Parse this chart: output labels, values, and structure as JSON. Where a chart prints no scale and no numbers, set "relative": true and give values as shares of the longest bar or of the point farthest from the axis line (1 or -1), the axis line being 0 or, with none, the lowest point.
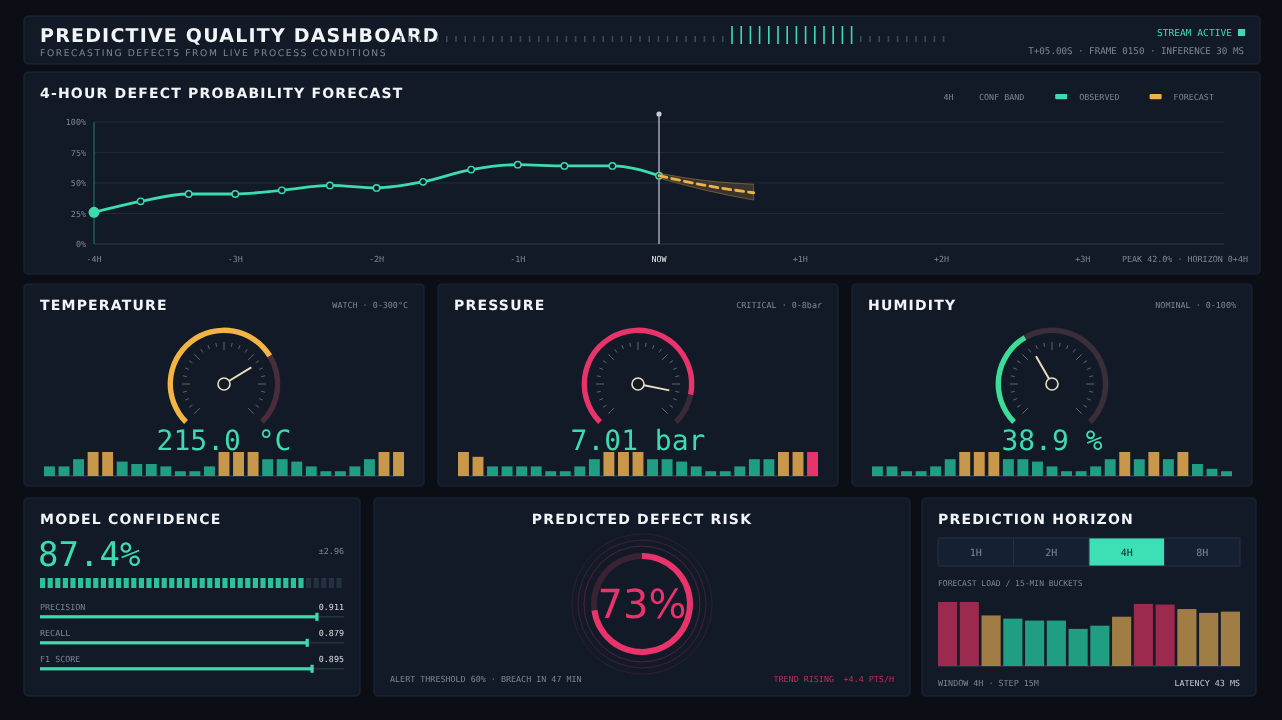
{
  "chart_data": [
    {
      "type": "other",
      "title": "PREDICTIVE QUALITY DASHBOARD",
      "subtitle": "FORECASTING DEFECTS FROM LIVE PROCESS CONDITIONS",
      "annotations": [
        "STREAM ACTIVE",
        "T+05.00S · FRAME 0150 · INFERENCE 30 MS"
      ]
    },
    {
      "type": "line",
      "title": "4-HOUR DEFECT PROBABILITY FORECAST",
      "xlim": [
        -4,
        4
      ],
      "ylim": [
        0,
        100
      ],
      "xticks": [
        {
          "value": -4,
          "label": "-4H"
        },
        {
          "value": -3,
          "label": "-3H"
        },
        {
          "value": -2,
          "label": "-2H"
        },
        {
          "value": -1,
          "label": "-1H"
        },
        {
          "value": 0,
          "label": "NOW"
        },
        {
          "value": 1,
          "label": "+1H"
        },
        {
          "value": 2,
          "label": "+2H"
        },
        {
          "value": 3,
          "label": "+3H"
        }
      ],
      "yticks": [
        {
          "value": 0,
          "label": "0%"
        },
        {
          "value": 25,
          "label": "25%"
        },
        {
          "value": 50,
          "label": "50%"
        },
        {
          "value": 75,
          "label": "75%"
        },
        {
          "value": 100,
          "label": "100%"
        }
      ],
      "series": [
        {
          "name": "OBSERVED",
          "color": "#3ddcb0",
          "marker": "circle",
          "line_style": "solid",
          "x": [
            -4,
            -3.67,
            -3.33,
            -3,
            -2.67,
            -2.33,
            -2,
            -1.67,
            -1.33,
            -1,
            -0.67,
            -0.33,
            0
          ],
          "values": [
            26,
            35,
            41,
            41,
            44,
            48,
            46,
            51,
            61,
            65,
            64,
            64,
            56
          ]
        },
        {
          "name": "FORECAST",
          "color": "#f0b04a",
          "marker": "none",
          "line_style": "dashed",
          "x": [
            0,
            0.33,
            0.67
          ],
          "values": [
            56,
            48,
            42
          ],
          "lower": [
            54,
            44,
            36
          ],
          "upper": [
            58,
            52,
            49
          ]
        }
      ],
      "ref_lines": [
        {
          "axis": "x",
          "value": 0,
          "color": "#c8ccd4"
        }
      ],
      "grid": "y",
      "legend": "top right",
      "annotations": [
        "4H",
        "CONF BAND",
        "PEAK 42.0% · HORIZON 0+4H"
      ]
    },
    {
      "type": "donut",
      "categories": [
        null,
        null
      ],
      "values": [
        71.7,
        28.3
      ],
      "colors": [
        "#f2b544",
        "#4a2c3a"
      ],
      "annotations": [
        "215.0 °C"
      ]
    },
    {
      "type": "bar",
      "title": "TEMPERATURE",
      "subtitle": "WATCH · 0-300°C",
      "relative": true,
      "categories": [
        null,
        null,
        null,
        null,
        null,
        null,
        null,
        null,
        null,
        null,
        null,
        null,
        null,
        null,
        null,
        null,
        null,
        null,
        null,
        null,
        null,
        null,
        null,
        null,
        null
      ],
      "values": [
        0.4,
        0.4,
        0.7,
        1,
        1,
        0.6,
        0.5,
        0.5,
        0.4,
        0.2,
        0.2,
        0.4,
        1,
        1,
        1,
        0.7,
        0.7,
        0.6,
        0.4,
        0.2,
        0.2,
        0.4,
        0.7,
        1,
        1
      ],
      "colors": [
        "#1f9e82",
        "#1f9e82",
        "#1f9e82",
        "#c9974a",
        "#c9974a",
        "#1f9e82",
        "#1f9e82",
        "#1f9e82",
        "#1f9e82",
        "#1f9e82",
        "#1f9e82",
        "#1f9e82",
        "#c9974a",
        "#c9974a",
        "#c9974a",
        "#1f9e82",
        "#1f9e82",
        "#1f9e82",
        "#1f9e82",
        "#1f9e82",
        "#1f9e82",
        "#1f9e82",
        "#1f9e82",
        "#c9974a",
        "#c9974a"
      ]
    },
    {
      "type": "donut",
      "categories": [
        null,
        null
      ],
      "values": [
        87.6,
        12.4
      ],
      "colors": [
        "#e8336b",
        "#3a2a35"
      ],
      "annotations": [
        "7.01 bar"
      ]
    },
    {
      "type": "bar",
      "title": "PRESSURE",
      "subtitle": "CRITICAL · 0-8bar",
      "relative": true,
      "categories": [
        null,
        null,
        null,
        null,
        null,
        null,
        null,
        null,
        null,
        null,
        null,
        null,
        null,
        null,
        null,
        null,
        null,
        null,
        null,
        null,
        null,
        null,
        null,
        null,
        null
      ],
      "values": [
        1,
        0.8,
        0.4,
        0.4,
        0.4,
        0.4,
        0.2,
        0.2,
        0.4,
        0.7,
        1,
        1,
        1,
        0.7,
        0.7,
        0.6,
        0.4,
        0.2,
        0.2,
        0.4,
        0.7,
        0.7,
        1,
        1,
        1
      ],
      "colors": [
        "#c9974a",
        "#c9974a",
        "#1f9e82",
        "#1f9e82",
        "#1f9e82",
        "#1f9e82",
        "#1f9e82",
        "#1f9e82",
        "#1f9e82",
        "#1f9e82",
        "#c9974a",
        "#c9974a",
        "#c9974a",
        "#1f9e82",
        "#1f9e82",
        "#1f9e82",
        "#1f9e82",
        "#1f9e82",
        "#1f9e82",
        "#1f9e82",
        "#1f9e82",
        "#1f9e82",
        "#c9974a",
        "#c9974a",
        "#e8336b"
      ]
    },
    {
      "type": "donut",
      "categories": [
        null,
        null
      ],
      "values": [
        38.9,
        61.1
      ],
      "colors": [
        "#3ddc97",
        "#3a2f38"
      ],
      "annotations": [
        "38.9 %"
      ]
    },
    {
      "type": "bar",
      "title": "HUMIDITY",
      "subtitle": "NOMINAL · 0-100%",
      "relative": true,
      "categories": [
        null,
        null,
        null,
        null,
        null,
        null,
        null,
        null,
        null,
        null,
        null,
        null,
        null,
        null,
        null,
        null,
        null,
        null,
        null,
        null,
        null,
        null,
        null,
        null,
        null
      ],
      "values": [
        0.4,
        0.4,
        0.2,
        0.2,
        0.4,
        0.7,
        1,
        1,
        1,
        0.7,
        0.7,
        0.6,
        0.4,
        0.2,
        0.2,
        0.4,
        0.7,
        1,
        0.7,
        1,
        0.7,
        1,
        0.5,
        0.3,
        0.2
      ],
      "colors": [
        "#1f9e82",
        "#1f9e82",
        "#1f9e82",
        "#1f9e82",
        "#1f9e82",
        "#1f9e82",
        "#c9974a",
        "#c9974a",
        "#c9974a",
        "#1f9e82",
        "#1f9e82",
        "#1f9e82",
        "#1f9e82",
        "#1f9e82",
        "#1f9e82",
        "#1f9e82",
        "#1f9e82",
        "#c9974a",
        "#1f9e82",
        "#c9974a",
        "#1f9e82",
        "#c9974a",
        "#1f9e82",
        "#1f9e82",
        "#1f9e82"
      ]
    },
    {
      "type": "bar",
      "orientation": "horizontal",
      "title": "MODEL CONFIDENCE",
      "categories": [
        "PRECISION",
        "RECALL",
        "F1 SCORE"
      ],
      "values": [
        0.911,
        0.879,
        0.895
      ],
      "color": "#3ddcb0",
      "xlim": [
        0,
        1
      ],
      "data_labels": true,
      "annotations": [
        "87.4%",
        "±2.96"
      ]
    },
    {
      "type": "donut",
      "title": "PREDICTED DEFECT RISK",
      "categories": [
        null,
        null
      ],
      "values": [
        73,
        27
      ],
      "colors": [
        "#e8336b",
        "#3a2233"
      ],
      "value_labels": [
        "73%",
        null
      ],
      "annotations": [
        "ALERT THRESHOLD 60% · BREACH IN 47 MIN",
        "TREND RISING",
        "+4.4 PTS/H"
      ]
    },
    {
      "type": "bar",
      "relative": true,
      "title": "PREDICTION HORIZON",
      "subtitle": "FORECAST LOAD / 15-MIN BUCKETS",
      "categories": [
        null,
        null,
        null,
        null,
        null,
        null,
        null,
        null,
        null,
        null,
        null,
        null,
        null,
        null
      ],
      "values": [
        1,
        1,
        0.79,
        0.74,
        0.71,
        0.71,
        0.58,
        0.63,
        0.77,
        0.97,
        0.96,
        0.89,
        0.83,
        0.85
      ],
      "colors": [
        "#9b2a4e",
        "#9b2a4e",
        "#a07d45",
        "#1f9e82",
        "#1f9e82",
        "#1f9e82",
        "#1f9e82",
        "#1f9e82",
        "#a07d45",
        "#9b2a4e",
        "#9b2a4e",
        "#a07d45",
        "#a07d45",
        "#a07d45"
      ],
      "annotations": [
        "1H",
        "2H",
        "4H",
        "8H",
        "WINDOW 4H · STEP 15M",
        "LATENCY 43 MS"
      ]
    }
  ]
}
